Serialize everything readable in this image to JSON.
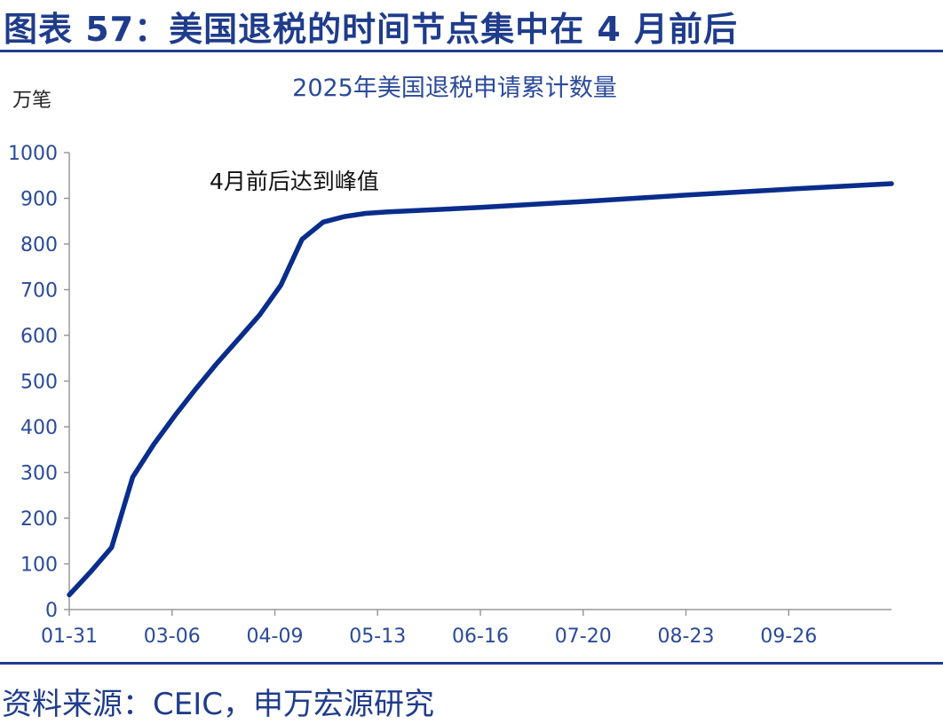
{
  "figure": {
    "title": "图表 57：美国退税的时间节点集中在 4 月前后",
    "source": "资料来源：CEIC，申万宏源研究"
  },
  "colors": {
    "brand": "#1f3c8c",
    "line": "#0a2d8c",
    "text": "#2a4a9a"
  },
  "chart_data": {
    "type": "line",
    "title": "2025年美国退税申请累计数量",
    "ylabel": "万笔",
    "xlabel": "",
    "ylim": [
      0,
      1000
    ],
    "yticks": [
      0,
      100,
      200,
      300,
      400,
      500,
      600,
      700,
      800,
      900,
      1000
    ],
    "xlim": [
      "2025-01-31",
      "2025-10-30"
    ],
    "xticks": [
      "2025-01-31",
      "2025-03-06",
      "2025-04-09",
      "2025-05-13",
      "2025-06-16",
      "2025-07-20",
      "2025-08-23",
      "2025-09-26"
    ],
    "xtick_labels": [
      "01-31",
      "03-06",
      "04-09",
      "05-13",
      "06-16",
      "07-20",
      "08-23",
      "09-26"
    ],
    "grid": false,
    "annotation": "4月前后达到峰值",
    "series": [
      {
        "x": [
          "2025-01-31",
          "2025-02-07",
          "2025-02-14",
          "2025-02-21",
          "2025-02-28",
          "2025-03-07",
          "2025-03-14",
          "2025-03-21",
          "2025-03-28",
          "2025-04-04",
          "2025-04-11",
          "2025-04-18",
          "2025-04-25",
          "2025-05-02",
          "2025-05-09",
          "2025-05-16",
          "2025-06-16",
          "2025-07-20",
          "2025-08-23",
          "2025-09-26",
          "2025-10-30"
        ],
        "values": [
          32,
          82,
          136,
          290,
          362,
          425,
          484,
          540,
          592,
          645,
          710,
          810,
          848,
          860,
          867,
          870,
          880,
          893,
          907,
          920,
          932
        ]
      }
    ]
  }
}
